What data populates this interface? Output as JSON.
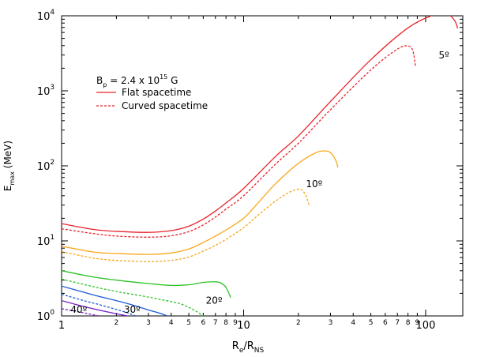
{
  "chart_data": {
    "type": "line",
    "title": "",
    "xlabel": {
      "main": "R",
      "sub1": "e",
      "mid": "/R",
      "sub2": "NS"
    },
    "ylabel": {
      "main": "E",
      "sub": "max",
      "rest": " (MeV)"
    },
    "xscale": "log",
    "yscale": "log",
    "xlim": [
      1,
      160
    ],
    "ylim": [
      1,
      10000
    ],
    "x_major_ticks": [
      {
        "value": 1,
        "label": "1"
      },
      {
        "value": 10,
        "label": "10"
      },
      {
        "value": 100,
        "label": "100"
      }
    ],
    "x_minor_ticks": [
      {
        "value": 2,
        "label": "2"
      },
      {
        "value": 3,
        "label": "3"
      },
      {
        "value": 4,
        "label": "4"
      },
      {
        "value": 5,
        "label": "5"
      },
      {
        "value": 6,
        "label": "6"
      },
      {
        "value": 7,
        "label": "7"
      },
      {
        "value": 8,
        "label": "8"
      },
      {
        "value": 9,
        "label": "9"
      },
      {
        "value": 20,
        "label": "2"
      },
      {
        "value": 30,
        "label": "3"
      },
      {
        "value": 40,
        "label": "4"
      },
      {
        "value": 50,
        "label": "5"
      },
      {
        "value": 60,
        "label": "6"
      },
      {
        "value": 70,
        "label": "7"
      },
      {
        "value": 80,
        "label": "8"
      },
      {
        "value": 90,
        "label": "9"
      }
    ],
    "y_major_ticks": [
      {
        "value": 1,
        "base": "10",
        "exp": "0"
      },
      {
        "value": 10,
        "base": "10",
        "exp": "1"
      },
      {
        "value": 100,
        "base": "10",
        "exp": "2"
      },
      {
        "value": 1000,
        "base": "10",
        "exp": "3"
      },
      {
        "value": 10000,
        "base": "10",
        "exp": "4"
      }
    ],
    "legend": {
      "placement": "top-left",
      "header": {
        "prefix": "B",
        "sub": "p",
        "mid": " = 2.4 x 10",
        "sup": "15",
        "suffix": " G"
      },
      "entries": [
        {
          "label": "Flat spacetime",
          "style": "solid"
        },
        {
          "label": "Curved spacetime",
          "style": "dashed"
        }
      ]
    },
    "annotations": [
      {
        "text": "5º",
        "x": 118,
        "y": 2700
      },
      {
        "text": "10º",
        "x": 22,
        "y": 52
      },
      {
        "text": "20º",
        "x": 6.2,
        "y": 1.45
      },
      {
        "text": "30º",
        "x": 2.2,
        "y": 1.1
      },
      {
        "text": "40º",
        "x": 1.12,
        "y": 1.1
      }
    ],
    "series": [
      {
        "group": "5º",
        "style": "solid",
        "color": "#e8232b",
        "x": [
          1,
          1.5,
          2,
          3,
          4,
          5,
          6,
          7,
          8,
          10,
          15,
          20,
          30,
          50,
          80,
          110,
          125,
          135,
          145,
          150
        ],
        "y": [
          17,
          14.2,
          13.4,
          13,
          13.7,
          15.7,
          19.5,
          25,
          32,
          50,
          134,
          250,
          720,
          2600,
          6900,
          10200,
          10600,
          10200,
          8500,
          6800
        ]
      },
      {
        "group": "5º",
        "style": "dashed",
        "color": "#e8232b",
        "x": [
          1,
          1.5,
          2,
          3,
          4,
          5,
          6,
          7,
          8,
          10,
          15,
          20,
          30,
          50,
          70,
          80,
          85,
          88
        ],
        "y": [
          14.5,
          12.5,
          11.6,
          11.2,
          11.7,
          13.3,
          16.3,
          20.8,
          26.5,
          40,
          106,
          200,
          560,
          1900,
          3600,
          3950,
          3450,
          2100
        ]
      },
      {
        "group": "10º",
        "style": "solid",
        "color": "#f7a81b",
        "x": [
          1,
          1.5,
          2,
          3,
          4,
          5,
          6,
          7,
          8,
          10,
          12,
          15,
          20,
          25,
          28,
          30,
          32,
          33
        ],
        "y": [
          8.5,
          7.1,
          6.8,
          6.6,
          6.9,
          7.8,
          9.5,
          11.6,
          14,
          20,
          32,
          58,
          108,
          150,
          158,
          150,
          120,
          95
        ]
      },
      {
        "group": "10º",
        "style": "dashed",
        "color": "#f7a81b",
        "x": [
          1,
          1.5,
          2,
          3,
          4,
          5,
          6,
          7,
          8,
          10,
          12,
          15,
          18,
          20,
          21,
          22,
          23
        ],
        "y": [
          7.2,
          5.9,
          5.5,
          5.3,
          5.5,
          6.1,
          7.3,
          8.7,
          10.5,
          15,
          22,
          34,
          45,
          49,
          47,
          40,
          29
        ]
      },
      {
        "group": "20º",
        "style": "solid",
        "color": "#2ec22a",
        "x": [
          1,
          1.5,
          2,
          3,
          4,
          5,
          6,
          7,
          7.5,
          8,
          8.5
        ],
        "y": [
          4,
          3.3,
          3,
          2.7,
          2.55,
          2.6,
          2.8,
          2.85,
          2.75,
          2.4,
          1.75
        ]
      },
      {
        "group": "20º",
        "style": "dashed",
        "color": "#2ec22a",
        "x": [
          1,
          1.5,
          2,
          3,
          4,
          4.5,
          5,
          5.5,
          6
        ],
        "y": [
          3.1,
          2.45,
          2.12,
          1.78,
          1.55,
          1.45,
          1.3,
          1.15,
          1.0
        ]
      },
      {
        "group": "30º",
        "style": "solid",
        "color": "#1f5bd6",
        "x": [
          1,
          1.5,
          2,
          2.5,
          3,
          3.5,
          3.8
        ],
        "y": [
          2.5,
          1.9,
          1.6,
          1.38,
          1.2,
          1.08,
          1.0
        ]
      },
      {
        "group": "30º",
        "style": "dashed",
        "color": "#1f5bd6",
        "x": [
          1,
          1.3,
          1.6,
          2,
          2.3,
          2.55
        ],
        "y": [
          1.95,
          1.62,
          1.42,
          1.22,
          1.1,
          1.0
        ]
      },
      {
        "group": "40º",
        "style": "solid",
        "color": "#7a1fc4",
        "x": [
          1,
          1.3,
          1.6,
          2,
          2.3
        ],
        "y": [
          1.6,
          1.35,
          1.2,
          1.07,
          1.0
        ]
      },
      {
        "group": "40º",
        "style": "dashed",
        "color": "#7a1fc4",
        "x": [
          1,
          1.2,
          1.4,
          1.6
        ],
        "y": [
          1.25,
          1.15,
          1.07,
          1.0
        ]
      }
    ]
  }
}
